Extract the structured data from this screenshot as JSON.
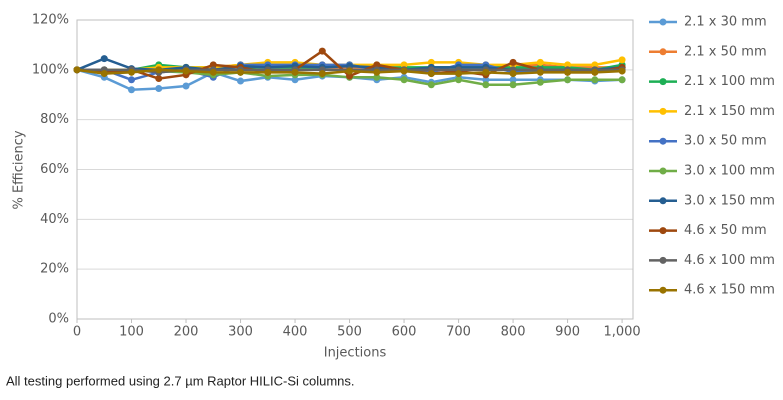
{
  "chart_data": {
    "type": "line",
    "x": [
      0,
      50,
      100,
      150,
      200,
      250,
      300,
      350,
      400,
      450,
      500,
      550,
      600,
      650,
      700,
      750,
      800,
      850,
      900,
      950,
      1000
    ],
    "series": [
      {
        "name": "2.1 x 30 mm",
        "color": "#5b9bd5",
        "values": [
          100,
          97,
          92,
          92.5,
          93.5,
          99,
          95.5,
          97,
          96,
          97.5,
          97,
          96,
          97,
          95,
          97,
          96,
          96,
          96,
          96,
          95.5,
          96
        ]
      },
      {
        "name": "2.1 x 50 mm",
        "color": "#ed7d31",
        "values": [
          100,
          100,
          100,
          100,
          100,
          101,
          102,
          102,
          101,
          101,
          101,
          101,
          100,
          101,
          101,
          101,
          102,
          102,
          101,
          101,
          101
        ]
      },
      {
        "name": "2.1 x 100 mm",
        "color": "#1daf55",
        "values": [
          100,
          100,
          100,
          102,
          101,
          101,
          101,
          101,
          101,
          101,
          102,
          101,
          101,
          101,
          101,
          101,
          101,
          101,
          101,
          100,
          102
        ]
      },
      {
        "name": "2.1 x 150 mm",
        "color": "#ffc000",
        "values": [
          100,
          100,
          100,
          101,
          101,
          101,
          102,
          103,
          103,
          102,
          102,
          102,
          102,
          103,
          103,
          102,
          102,
          103,
          102,
          102,
          104
        ]
      },
      {
        "name": "3.0 x 50 mm",
        "color": "#4472c4",
        "values": [
          100,
          100,
          96,
          99,
          100,
          97,
          102,
          102,
          102,
          102,
          102,
          100,
          100,
          99,
          102,
          102,
          99,
          100,
          100,
          100,
          101
        ]
      },
      {
        "name": "3.0 x 100 mm",
        "color": "#70ad47",
        "values": [
          100,
          99,
          100,
          99.5,
          99,
          98,
          99,
          97.5,
          98,
          98,
          97,
          97,
          96,
          94,
          96,
          94,
          94,
          95,
          96,
          96,
          96
        ]
      },
      {
        "name": "3.0 x 150 mm",
        "color": "#255e91",
        "values": [
          100,
          104.5,
          100.5,
          100,
          101,
          100,
          101.5,
          101,
          101.5,
          101,
          101.5,
          101,
          100,
          101,
          101,
          101,
          100,
          100,
          100,
          100,
          101
        ]
      },
      {
        "name": "4.6 x 50 mm",
        "color": "#9e480e",
        "values": [
          100,
          99,
          100,
          96.5,
          98,
          102,
          101,
          99,
          100,
          107.5,
          97.5,
          102,
          100,
          98.5,
          99.5,
          98,
          103,
          100,
          99,
          99,
          101
        ]
      },
      {
        "name": "4.6 x 100 mm",
        "color": "#636363",
        "values": [
          100,
          100,
          100,
          99,
          100,
          100,
          100,
          100,
          100,
          100,
          100,
          100,
          100,
          100,
          100,
          100,
          100,
          100,
          100,
          100,
          100
        ]
      },
      {
        "name": "4.6 x 150 mm",
        "color": "#997300",
        "values": [
          100,
          98.5,
          99,
          100,
          99.5,
          99,
          99,
          99,
          99,
          98.5,
          99.5,
          99,
          99.5,
          98.5,
          98.5,
          99,
          98.5,
          99,
          99,
          99,
          99.5
        ]
      }
    ],
    "xlabel": "Injections",
    "ylabel": "% Efficiency",
    "xlim": [
      0,
      1020
    ],
    "ylim": [
      0,
      120
    ],
    "xticks": [
      0,
      100,
      200,
      300,
      400,
      500,
      600,
      700,
      800,
      900,
      {
        "value": 1000,
        "label": "1,000"
      }
    ],
    "yticks": [
      {
        "value": 0,
        "label": "0%"
      },
      {
        "value": 20,
        "label": "20%"
      },
      {
        "value": 40,
        "label": "40%"
      },
      {
        "value": 60,
        "label": "60%"
      },
      {
        "value": 80,
        "label": "80%"
      },
      {
        "value": 100,
        "label": "100%"
      },
      {
        "value": 120,
        "label": "120%"
      }
    ],
    "grid": true,
    "legend": "right",
    "footnote": "All testing performed using 2.7 µm Raptor HILIC-Si columns."
  }
}
